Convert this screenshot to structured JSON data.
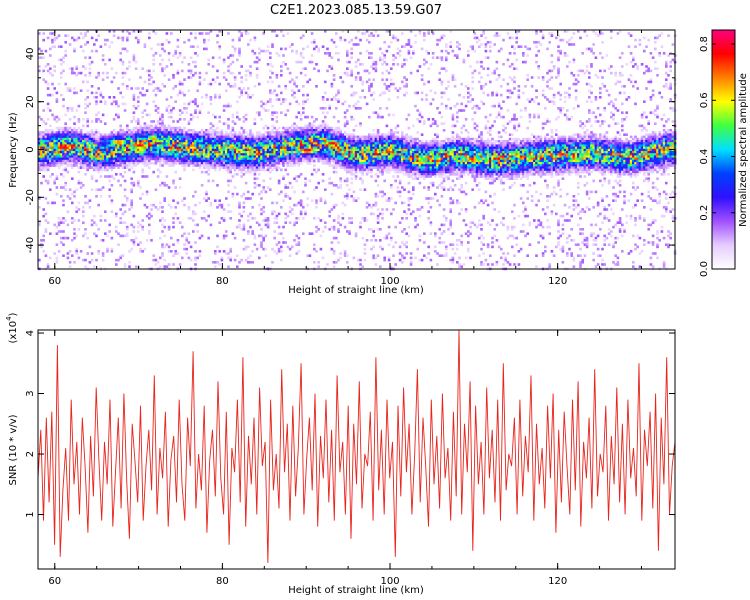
{
  "title": "C2E1.2023.085.13.59.G07",
  "chart_data": [
    {
      "type": "heatmap",
      "xlabel": "Height of straight line (km)",
      "ylabel": "Frequency (Hz)",
      "xlim": [
        58,
        134
      ],
      "ylim": [
        -50,
        50
      ],
      "xticks": [
        60,
        80,
        100,
        120
      ],
      "yticks": [
        -40,
        -20,
        0,
        20,
        40
      ],
      "colorbar": {
        "label": "Normalized spectral amplitude",
        "range": [
          0.0,
          0.85
        ],
        "ticks": [
          "0.0",
          "0.2",
          "0.4",
          "0.6",
          "0.8"
        ],
        "tick_values": [
          0.0,
          0.2,
          0.4,
          0.6,
          0.8
        ],
        "colormap": [
          "#ffffff",
          "#e6ccff",
          "#a050ff",
          "#3010ff",
          "#0040ff",
          "#00e0ff",
          "#40ff40",
          "#ffff00",
          "#ff8000",
          "#ff0000",
          "#ff0080"
        ]
      },
      "ridge_center_hz": [
        0,
        2,
        -1,
        1,
        3,
        1,
        0,
        -1,
        2,
        3,
        -2,
        0,
        -4,
        -2,
        -4,
        -3,
        -2,
        -1,
        -3,
        -2,
        0,
        1
      ],
      "ridge_x_km": [
        58,
        62,
        65,
        68,
        72,
        76,
        80,
        84,
        88,
        92,
        96,
        100,
        104,
        108,
        112,
        116,
        120,
        124,
        128,
        130,
        132,
        134
      ],
      "peak_cells": [
        {
          "x": 61.0,
          "y": 1.5,
          "amp": 0.85
        },
        {
          "x": 67.5,
          "y": 3.5,
          "amp": 0.75
        },
        {
          "x": 70.0,
          "y": 2.0,
          "amp": 0.8
        },
        {
          "x": 90.0,
          "y": 0.0,
          "amp": 0.85
        },
        {
          "x": 93.0,
          "y": 3.0,
          "amp": 0.8
        },
        {
          "x": 103.5,
          "y": -5.0,
          "amp": 0.65
        },
        {
          "x": 122.0,
          "y": -4.0,
          "amp": 0.65
        }
      ]
    },
    {
      "type": "line",
      "xlabel": "Height of straight line (km)",
      "ylabel": "SNR (10 * v/v)",
      "y_multiplier_label": "(x10",
      "y_multiplier_exp": "4",
      "xlim": [
        58,
        134
      ],
      "ylim": [
        0.1,
        4.05
      ],
      "xticks": [
        60,
        80,
        100,
        120
      ],
      "yticks": [
        1,
        2,
        3,
        4
      ],
      "color": "#e8241c",
      "series": [
        {
          "x_start": 58,
          "x_end": 134,
          "values": [
            1.6,
            2.4,
            0.9,
            2.6,
            1.2,
            2.7,
            0.5,
            3.8,
            0.3,
            1.4,
            2.1,
            0.9,
            2.9,
            1.5,
            2.2,
            1.0,
            2.6,
            1.8,
            0.7,
            2.3,
            1.3,
            3.1,
            1.9,
            0.9,
            2.2,
            1.5,
            2.9,
            0.8,
            1.7,
            2.6,
            1.1,
            3.0,
            1.6,
            0.6,
            2.5,
            1.9,
            1.2,
            2.8,
            0.9,
            1.8,
            2.4,
            1.4,
            3.3,
            1.0,
            2.1,
            1.6,
            2.7,
            0.8,
            1.9,
            2.3,
            1.2,
            2.9,
            1.5,
            0.9,
            2.6,
            1.8,
            3.7,
            1.1,
            2.0,
            1.4,
            2.8,
            0.7,
            1.9,
            2.4,
            1.3,
            3.2,
            1.6,
            1.0,
            2.7,
            0.5,
            2.1,
            1.7,
            2.9,
            1.2,
            3.6,
            0.8,
            2.3,
            1.5,
            2.6,
            1.0,
            3.1,
            1.8,
            2.2,
            0.2,
            2.9,
            1.4,
            2.0,
            1.1,
            3.4,
            1.7,
            2.5,
            0.9,
            2.8,
            1.3,
            2.1,
            3.5,
            1.0,
            1.9,
            2.6,
            1.4,
            3.0,
            0.8,
            2.3,
            1.6,
            2.9,
            1.2,
            2.4,
            0.9,
            3.3,
            1.7,
            2.2,
            1.0,
            2.8,
            0.6,
            2.5,
            1.5,
            3.2,
            1.1,
            2.0,
            1.8,
            2.7,
            0.9,
            3.6,
            1.4,
            2.4,
            1.0,
            2.9,
            1.6,
            2.2,
            0.3,
            2.8,
            1.3,
            3.1,
            1.7,
            2.5,
            1.0,
            2.0,
            3.4,
            1.2,
            2.6,
            1.8,
            0.8,
            2.9,
            1.5,
            2.3,
            1.1,
            3.0,
            1.6,
            2.1,
            0.9,
            2.7,
            1.3,
            4.05,
            1.0,
            2.5,
            1.7,
            3.2,
            0.4,
            2.8,
            1.5,
            2.2,
            1.0,
            3.1,
            1.6,
            2.4,
            1.2,
            2.9,
            0.9,
            3.5,
            1.4,
            2.0,
            1.8,
            2.6,
            1.0,
            2.9,
            1.3,
            2.3,
            1.7,
            3.3,
            0.9,
            2.5,
            1.5,
            2.1,
            1.1,
            2.8,
            1.6,
            3.0,
            0.7,
            2.4,
            1.2,
            2.7,
            1.8,
            1.0,
            2.9,
            1.4,
            3.2,
            0.8,
            2.2,
            1.6,
            2.6,
            1.1,
            3.4,
            1.3,
            2.0,
            1.7,
            2.8,
            0.9,
            2.3,
            1.5,
            3.1,
            1.2,
            2.5,
            1.0,
            2.9,
            1.6,
            2.1,
            1.3,
            3.5,
            0.9,
            2.4,
            1.8,
            2.7,
            1.1,
            3.0,
            0.4,
            2.6,
            1.5,
            3.6,
            1.0,
            1.8,
            2.2
          ]
        }
      ]
    }
  ]
}
